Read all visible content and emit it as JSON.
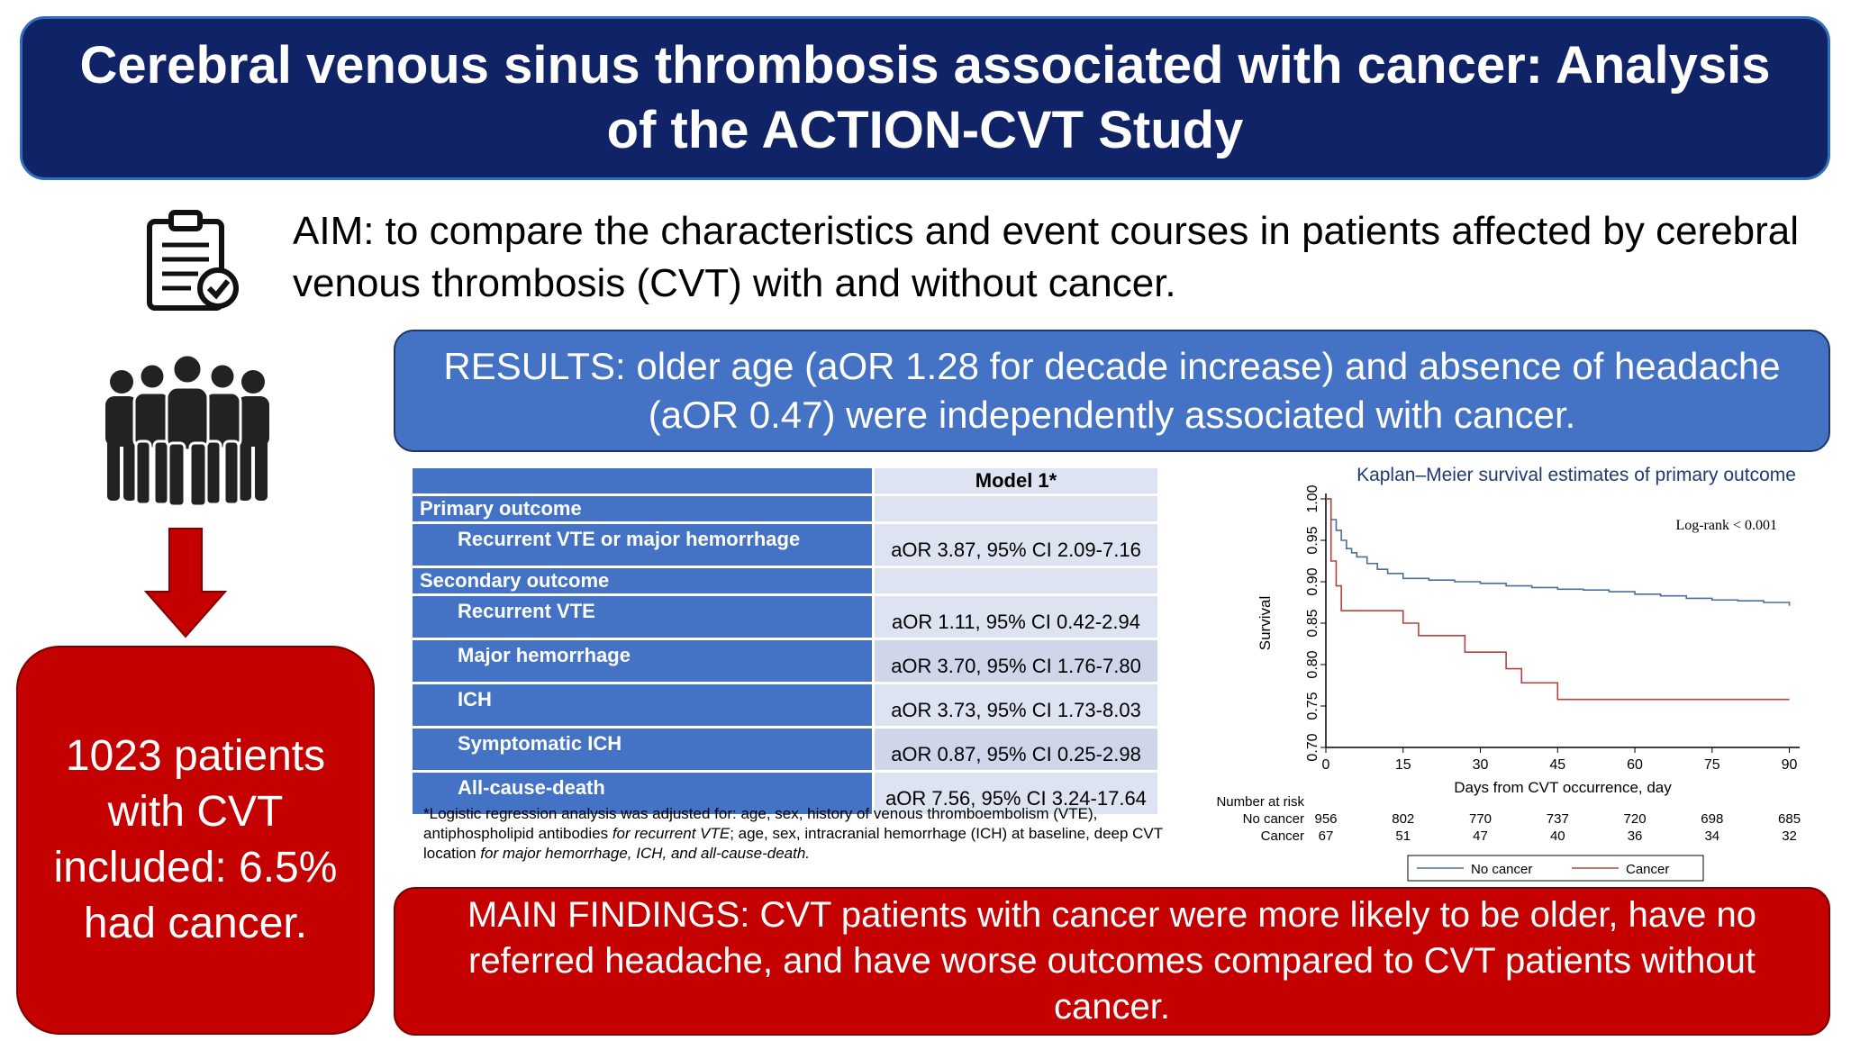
{
  "title": "Cerebral venous sinus thrombosis associated with cancer: Analysis of the ACTION-CVT Study",
  "aim": "AIM: to compare the characteristics and event courses in patients affected by cerebral venous thrombosis (CVT) with and without cancer.",
  "results": "RESULTS: older age (aOR 1.28 for decade increase) and absence of headache (aOR 0.47) were independently associated with cancer.",
  "patients_box": "1023 patients with CVT included: 6.5% had cancer.",
  "main_findings": "MAIN FINDINGS: CVT patients with cancer were more likely to be older, have no referred headache, and have worse outcomes compared to CVT patients without cancer.",
  "icons": {
    "aim": "clipboard-check-icon",
    "people": "people-group-icon",
    "arrow": "down-arrow-icon"
  },
  "colors": {
    "title_bg": "#0f2366",
    "results_bg": "#4472c4",
    "alert_red": "#c40000",
    "no_cancer_line": "#4a6f9a",
    "cancer_line": "#b5423d"
  },
  "table": {
    "header": "Model 1*",
    "primary_label": "Primary outcome",
    "primary_rows": [
      {
        "label": "Recurrent VTE or major hemorrhage",
        "value": "aOR 3.87, 95% CI 2.09-7.16"
      }
    ],
    "secondary_label": "Secondary outcome",
    "secondary_rows": [
      {
        "label": "Recurrent VTE",
        "value": "aOR 1.11, 95% CI 0.42-2.94"
      },
      {
        "label": "Major hemorrhage",
        "value": "aOR 3.70, 95% CI 1.76-7.80"
      },
      {
        "label": "ICH",
        "value": "aOR 3.73, 95% CI 1.73-8.03"
      },
      {
        "label": "Symptomatic ICH",
        "value": "aOR 0.87, 95% CI 0.25-2.98"
      },
      {
        "label": "All-cause-death",
        "value": "aOR 7.56, 95% CI 3.24-17.64"
      }
    ],
    "footnote_1": "*Logistic regression analysis was adjusted for: age, sex, history of venous thromboembolism (VTE), antiphospholipid antibodies ",
    "footnote_1_it": "for recurrent VTE",
    "footnote_2": "; age, sex, intracranial hemorrhage (ICH) at baseline, deep CVT location ",
    "footnote_2_it": "for major hemorrhage, ICH, and all-cause-death."
  },
  "chart_data": {
    "type": "line",
    "title": "Kaplan–Meier survival estimates of primary outcome",
    "xlabel": "Days from CVT occurrence, day",
    "ylabel": "Survival",
    "xlim": [
      0,
      92
    ],
    "ylim": [
      0.7,
      1.0
    ],
    "xticks": [
      0,
      15,
      30,
      45,
      60,
      75,
      90
    ],
    "yticks": [
      0.7,
      0.75,
      0.8,
      0.85,
      0.9,
      0.95,
      1.0
    ],
    "annotation": "Log-rank < 0.001",
    "legend_position": "bottom",
    "grid": false,
    "series": [
      {
        "name": "No cancer",
        "x": [
          0,
          1,
          2,
          3,
          4,
          5,
          6,
          8,
          10,
          12,
          15,
          20,
          25,
          30,
          35,
          40,
          45,
          50,
          55,
          60,
          65,
          70,
          75,
          80,
          85,
          90
        ],
        "y": [
          1.0,
          0.975,
          0.962,
          0.95,
          0.94,
          0.935,
          0.93,
          0.922,
          0.915,
          0.91,
          0.904,
          0.902,
          0.9,
          0.898,
          0.895,
          0.893,
          0.891,
          0.89,
          0.888,
          0.885,
          0.883,
          0.88,
          0.878,
          0.877,
          0.875,
          0.871
        ]
      },
      {
        "name": "Cancer",
        "x": [
          0,
          1,
          2,
          3,
          15,
          18,
          27,
          35,
          38,
          45,
          90
        ],
        "y": [
          1.0,
          0.925,
          0.895,
          0.865,
          0.85,
          0.835,
          0.815,
          0.795,
          0.778,
          0.758,
          0.758
        ]
      }
    ],
    "risk_table": {
      "title": "Number at risk",
      "times": [
        0,
        15,
        30,
        45,
        60,
        75,
        90
      ],
      "rows": [
        {
          "label": "No cancer",
          "values": [
            956,
            802,
            770,
            737,
            720,
            698,
            685
          ]
        },
        {
          "label": "Cancer",
          "values": [
            67,
            51,
            47,
            40,
            36,
            34,
            32
          ]
        }
      ]
    }
  }
}
